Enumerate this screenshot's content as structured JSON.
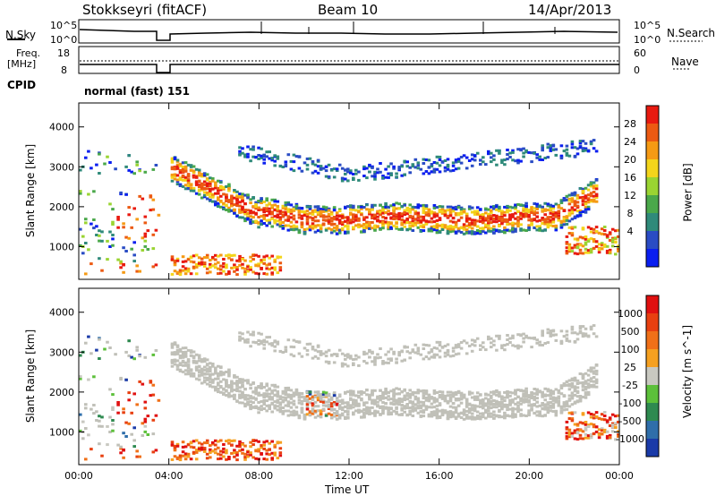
{
  "header": {
    "station": "Stokkseyri (fitACF)",
    "beam": "Beam 10",
    "date": "14/Apr/2013"
  },
  "strip_panels": {
    "nsky_label": "N.Sky",
    "nsky_ticks": [
      "10^5",
      "10^0"
    ],
    "nsearch_label": "N.Search",
    "nsearch_ticks": [
      "10^5",
      "10^0"
    ],
    "freq_label_1": "Freq.",
    "freq_label_2": "[MHz]",
    "freq_ticks": [
      "18",
      "8"
    ],
    "nave_label": "Nave",
    "nave_ticks": [
      "60",
      "0"
    ],
    "cpid_label": "CPID",
    "cpid_value": "normal (fast) 151"
  },
  "colors": {
    "power_scale": [
      "#0a1ef0",
      "#2a4cc4",
      "#2f8a7a",
      "#4aa84a",
      "#9ad432",
      "#f3d51b",
      "#f59a14",
      "#ec5a12",
      "#e81a10"
    ],
    "velocity_scale": [
      "#1a3aa8",
      "#2f6eaa",
      "#2e8a50",
      "#5cc03a",
      "#c8c8c0",
      "#f5a020",
      "#f07018",
      "#e84010",
      "#e01010"
    ],
    "ground_scatter": "#c0c0b8"
  },
  "chart_data": [
    {
      "type": "heatmap",
      "title": "Power",
      "xlabel": "Time UT",
      "ylabel": "Slant Range [km]",
      "x_ticks": [
        "00:00",
        "04:00",
        "08:00",
        "12:00",
        "16:00",
        "20:00",
        "00:00"
      ],
      "y_ticks": [
        1000,
        2000,
        3000,
        4000
      ],
      "xlim_hours": [
        0,
        24
      ],
      "ylim_km": [
        180,
        4600
      ],
      "colorbar_label": "Power [dB]",
      "colorbar_ticks": [
        "28",
        "24",
        "20",
        "16",
        "12",
        "8",
        "4"
      ],
      "data_gap_hours": [
        3.6,
        4.0
      ],
      "regions": [
        {
          "name": "early echoes",
          "t": [
            0.0,
            3.6
          ],
          "r": [
            300,
            3400
          ],
          "peak_db": 28
        },
        {
          "name": "main band",
          "t": [
            4.2,
            23.0
          ],
          "r": [
            1300,
            2500
          ],
          "peak_db": 28
        },
        {
          "name": "upper band",
          "t": [
            7.0,
            23.0
          ],
          "r": [
            2800,
            3500
          ],
          "peak_db": 8
        },
        {
          "name": "late low band",
          "t": [
            21.5,
            24.0
          ],
          "r": [
            800,
            1500
          ],
          "peak_db": 28
        }
      ]
    },
    {
      "type": "heatmap",
      "title": "Velocity",
      "xlabel": "Time UT",
      "ylabel": "Slant Range [km]",
      "x_ticks": [
        "00:00",
        "04:00",
        "08:00",
        "12:00",
        "16:00",
        "20:00",
        "00:00"
      ],
      "y_ticks": [
        1000,
        2000,
        3000,
        4000
      ],
      "xlim_hours": [
        0,
        24
      ],
      "ylim_km": [
        180,
        4600
      ],
      "colorbar_label": "Velocity [m s^-1]",
      "colorbar_ticks": [
        "1000",
        "500",
        "100",
        "25",
        "-25",
        "-100",
        "-500",
        "-1000"
      ],
      "data_gap_hours": [
        3.6,
        4.0
      ]
    }
  ]
}
